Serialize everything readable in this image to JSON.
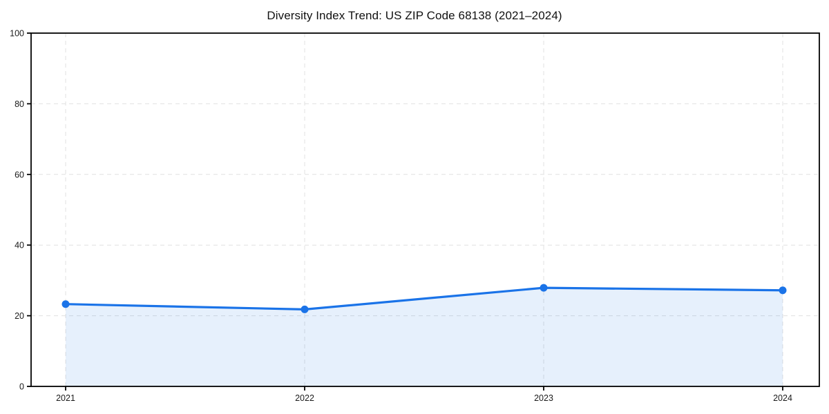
{
  "title": "Diversity Index Trend: US ZIP Code 68138 (2021–2024)",
  "chart_data": {
    "type": "area",
    "title": "Diversity Index Trend: US ZIP Code 68138 (2021–2024)",
    "x": [
      "2021",
      "2022",
      "2023",
      "2024"
    ],
    "series": [
      {
        "name": "Diversity Index",
        "values": [
          23.3,
          21.8,
          27.9,
          27.2
        ]
      }
    ],
    "xlabel": "",
    "ylabel": "",
    "ylim": [
      0,
      100
    ],
    "yticks": [
      0,
      20,
      40,
      60,
      80,
      100
    ],
    "grid": true,
    "grid_style": "dashed",
    "legend": false,
    "colors": {
      "line": "#1a73e8",
      "marker": "#1a73e8",
      "fill": "rgba(26,115,232,0.11)",
      "grid": "#e0e0e0",
      "spine": "#000000",
      "text": "#1a1a1a",
      "background": "#ffffff"
    }
  }
}
